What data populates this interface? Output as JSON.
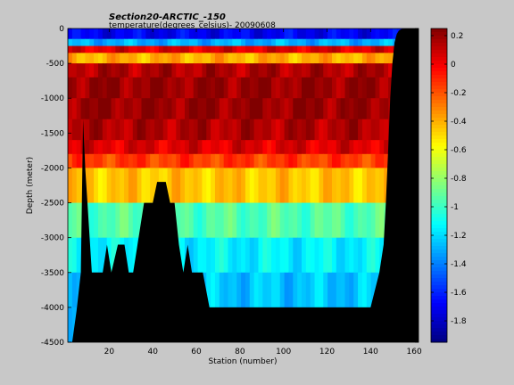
{
  "chart_data": {
    "type": "heatmap",
    "title": "Section20-ARCTIC_-150",
    "subtitle": "temperature(degrees_celsius)- 20090608",
    "xlabel": "Station (number)",
    "ylabel": "Depth (meter)",
    "xlim": [
      1,
      162
    ],
    "ylim": [
      -4500,
      0
    ],
    "x_ticks": [
      20,
      40,
      60,
      80,
      100,
      120,
      140,
      160
    ],
    "y_ticks": [
      0,
      -500,
      -1000,
      -1500,
      -2000,
      -2500,
      -3000,
      -3500,
      -4000,
      -4500
    ],
    "colorbar": {
      "clim": [
        -1.95,
        0.25
      ],
      "ticks": [
        0.2,
        0,
        -0.2,
        -0.4,
        -0.6,
        -0.8,
        -1,
        -1.2,
        -1.4,
        -1.6,
        -1.8
      ]
    },
    "colormap": "jet",
    "no_data_color": "#000000",
    "depth_levels": [
      0,
      150,
      250,
      350,
      500,
      700,
      1000,
      1300,
      1600,
      1800,
      2000,
      2500,
      3000,
      3500,
      4000,
      4500
    ],
    "layer_temperature": [
      -1.7,
      -1.3,
      0.05,
      -0.4,
      0.15,
      0.2,
      0.2,
      0.15,
      0.05,
      -0.15,
      -0.45,
      -0.95,
      -1.15,
      -1.25,
      -1.3
    ],
    "bottom_profile": {
      "station": [
        1,
        3,
        5,
        7,
        8,
        9,
        10,
        12,
        14,
        17,
        19,
        21,
        24,
        27,
        29,
        31,
        33,
        36,
        38,
        40,
        42,
        44,
        46,
        48,
        50,
        52,
        54,
        56,
        58,
        60,
        63,
        66,
        70,
        75,
        80,
        90,
        100,
        110,
        120,
        130,
        140,
        144,
        146,
        147,
        148,
        149,
        150,
        151,
        152,
        153,
        154,
        156,
        158,
        160,
        162
      ],
      "depth": [
        4500,
        4500,
        4050,
        3500,
        1300,
        2000,
        2500,
        3500,
        3500,
        3500,
        3100,
        3500,
        3100,
        3100,
        3500,
        3500,
        3100,
        2500,
        2500,
        2500,
        2200,
        2200,
        2200,
        2500,
        2500,
        3100,
        3500,
        3100,
        3500,
        3500,
        3500,
        4000,
        4000,
        4000,
        4000,
        4000,
        4000,
        4000,
        4000,
        4000,
        4000,
        3500,
        3100,
        2500,
        1800,
        1000,
        500,
        200,
        80,
        30,
        10,
        0,
        0,
        0,
        0
      ]
    }
  }
}
